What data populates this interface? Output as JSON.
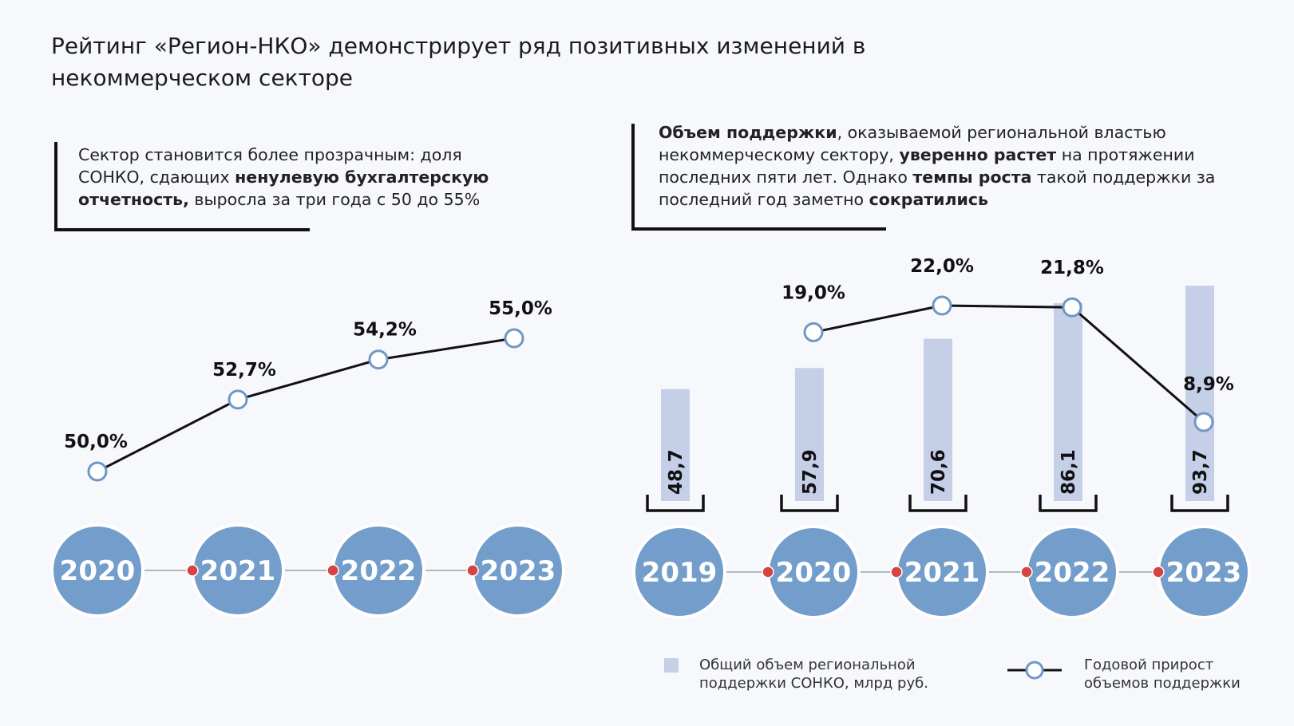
{
  "title": "Рейтинг «Регион-НКО» демонстрирует ряд позитивных изменений в некоммерческом секторе",
  "notes": [
    [
      {
        "text": "Сектор становится более прозрачным: доля СОНКО, сдающих ",
        "bold": false
      },
      {
        "text": "ненулевую бухгалтерскую отчетность,",
        "bold": true
      },
      {
        "text": " выросла за три года с 50  до 55%",
        "bold": false
      }
    ],
    [
      {
        "text": "Объем поддержки",
        "bold": true
      },
      {
        "text": ", оказываемой региональной властью некоммерческому сектору, ",
        "bold": false
      },
      {
        "text": "уверенно растет",
        "bold": true
      },
      {
        "text": " на протяжении последних пяти лет. Однако ",
        "bold": false
      },
      {
        "text": "темпы роста",
        "bold": true
      },
      {
        "text": " такой поддержки за последний год заметно ",
        "bold": false
      },
      {
        "text": "сократились",
        "bold": true
      }
    ]
  ],
  "chart_data": [
    {
      "type": "line",
      "categories": [
        "2020",
        "2021",
        "2022",
        "2023"
      ],
      "values": [
        50.0,
        52.7,
        54.2,
        55.0
      ],
      "value_labels": [
        "50,0%",
        "52,7%",
        "54,2%",
        "55,0%"
      ],
      "color": "#111111",
      "marker_color": "#6f97c6"
    },
    {
      "type": "combo",
      "categories": [
        "2019",
        "2020",
        "2021",
        "2022",
        "2023"
      ],
      "series": [
        {
          "name": "Общий объем региональной поддержки СОНКО, млрд руб.",
          "type": "bar",
          "color": "#c5cfe8",
          "values": [
            48.7,
            57.9,
            70.6,
            86.1,
            93.7
          ],
          "value_labels": [
            "48,7",
            "57,9",
            "70,6",
            "86,1",
            "93,7"
          ]
        },
        {
          "name": "Годовой прирост объемов поддержки",
          "type": "line",
          "color": "#111111",
          "values": [
            null,
            19.0,
            22.0,
            21.8,
            8.9
          ],
          "value_labels": [
            null,
            "19,0%",
            "22,0%",
            "21,8%",
            "8,9%"
          ]
        }
      ]
    }
  ]
}
